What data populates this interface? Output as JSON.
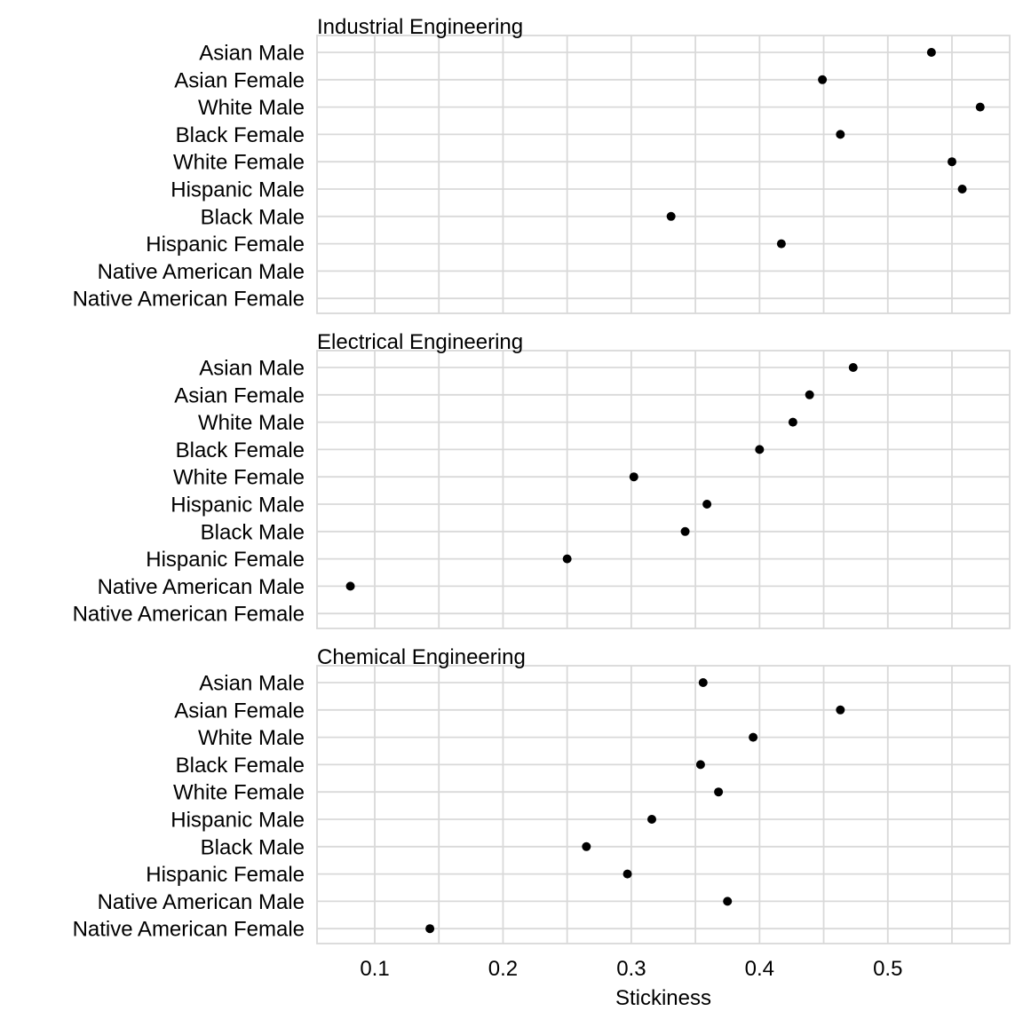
{
  "chart_data": {
    "type": "scatter",
    "xlabel": "Stickiness",
    "xlim": [
      0.055,
      0.595
    ],
    "xticks": [
      0.1,
      0.2,
      0.3,
      0.4,
      0.5
    ],
    "xtick_labels": [
      "0.1",
      "0.2",
      "0.3",
      "0.4",
      "0.5"
    ],
    "grid": true,
    "categories": [
      "Asian Male",
      "Asian Female",
      "White Male",
      "Black Female",
      "White Female",
      "Hispanic Male",
      "Black Male",
      "Hispanic Female",
      "Native American Male",
      "Native American Female"
    ],
    "panels": [
      {
        "title": "Industrial Engineering",
        "values": [
          0.534,
          0.449,
          0.572,
          0.463,
          0.55,
          0.558,
          0.331,
          0.417,
          null,
          null
        ]
      },
      {
        "title": "Electrical Engineering",
        "values": [
          0.473,
          0.439,
          0.426,
          0.4,
          0.302,
          0.359,
          0.342,
          0.25,
          0.081,
          null
        ]
      },
      {
        "title": "Chemical Engineering",
        "values": [
          0.356,
          0.463,
          0.395,
          0.354,
          0.368,
          0.316,
          0.265,
          0.297,
          0.375,
          0.143
        ]
      }
    ]
  }
}
